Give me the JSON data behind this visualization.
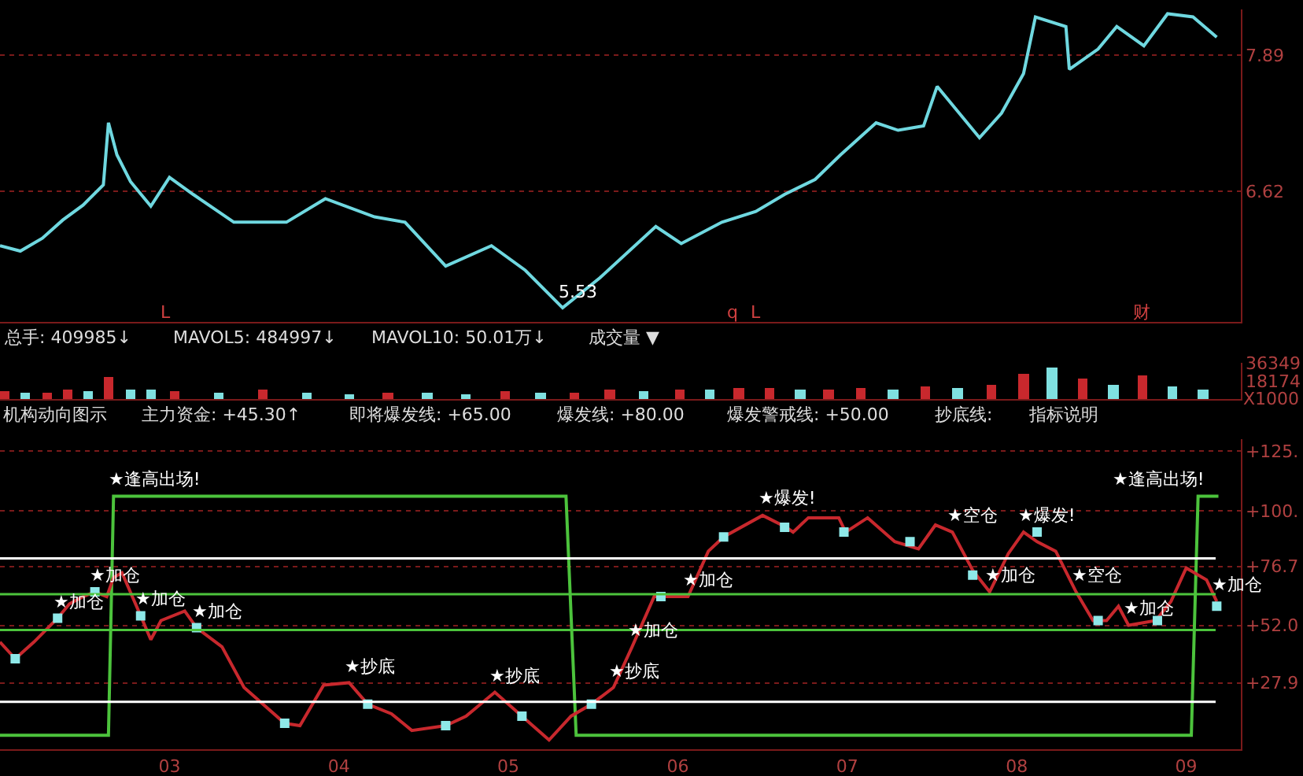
{
  "chart_data": [
    {
      "type": "line",
      "xlim": [
        2.0,
        9.32
      ],
      "ylim": [
        5.4,
        8.32
      ],
      "yticks": [
        6.62,
        7.89
      ],
      "grid": "y",
      "tick_labels": "y",
      "line_style": "solid",
      "series": [
        {
          "color": "#6fd8e0",
          "x": [
            2.0,
            2.12,
            2.25,
            2.37,
            2.49,
            2.61,
            2.64,
            2.69,
            2.77,
            2.89,
            3.0,
            3.14,
            3.38,
            3.69,
            3.92,
            4.21,
            4.39,
            4.63,
            4.9,
            5.1,
            5.32,
            5.54,
            5.87,
            6.02,
            6.26,
            6.46,
            6.63,
            6.81,
            6.96,
            7.17,
            7.3,
            7.45,
            7.53,
            7.78,
            7.91,
            8.04,
            8.11,
            8.29,
            8.31,
            8.48,
            8.59,
            8.75,
            8.89,
            9.04,
            9.18
          ],
          "values": [
            6.11,
            6.06,
            6.18,
            6.35,
            6.49,
            6.68,
            7.26,
            6.96,
            6.71,
            6.48,
            6.75,
            6.59,
            6.33,
            6.33,
            6.55,
            6.38,
            6.33,
            5.92,
            6.11,
            5.88,
            5.53,
            5.81,
            6.29,
            6.13,
            6.33,
            6.43,
            6.59,
            6.73,
            6.96,
            7.26,
            7.19,
            7.23,
            7.6,
            7.12,
            7.35,
            7.72,
            8.25,
            8.16,
            7.76,
            7.95,
            8.16,
            7.98,
            8.28,
            8.25,
            8.06
          ]
        }
      ],
      "annotations": [
        {
          "text": "5.53",
          "x": 5.32,
          "y": 5.53
        },
        "L",
        "q",
        "L",
        "财"
      ]
    },
    {
      "type": "bar",
      "xlim": [
        2.0,
        9.32
      ],
      "ylim": [
        0,
        36349
      ],
      "yticks": [
        36349,
        18174
      ],
      "ylabel": "X1000",
      "tick_labels": "y",
      "x": [
        2.03,
        2.15,
        2.28,
        2.4,
        2.52,
        2.64,
        2.77,
        2.89,
        3.03,
        3.29,
        3.55,
        3.81,
        4.06,
        4.29,
        4.52,
        4.75,
        4.98,
        5.19,
        5.39,
        5.6,
        5.8,
        6.01,
        6.19,
        6.36,
        6.54,
        6.72,
        6.89,
        7.08,
        7.27,
        7.46,
        7.65,
        7.85,
        8.04,
        8.21,
        8.39,
        8.57,
        8.74,
        8.92,
        9.1
      ],
      "values": [
        8000,
        6000,
        7000,
        9000,
        8000,
        22000,
        10000,
        9000,
        8000,
        7000,
        9000,
        6000,
        5000,
        7000,
        6000,
        5000,
        8000,
        6000,
        7000,
        9000,
        8000,
        10000,
        9000,
        11000,
        12000,
        10000,
        9000,
        11000,
        10000,
        13000,
        12000,
        14000,
        26000,
        32000,
        20000,
        14000,
        24000,
        13000,
        10000
      ],
      "colors": [
        "#c8282d",
        "#7fe0e0",
        "#c8282d",
        "#c8282d",
        "#7fe0e0",
        "#c8282d",
        "#7fe0e0",
        "#7fe0e0",
        "#c8282d",
        "#7fe0e0",
        "#c8282d",
        "#7fe0e0",
        "#7fe0e0",
        "#c8282d",
        "#7fe0e0",
        "#7fe0e0",
        "#c8282d",
        "#7fe0e0",
        "#c8282d",
        "#c8282d",
        "#7fe0e0",
        "#c8282d",
        "#7fe0e0",
        "#c8282d",
        "#c8282d",
        "#7fe0e0",
        "#c8282d",
        "#c8282d",
        "#7fe0e0",
        "#c8282d",
        "#7fe0e0",
        "#c8282d",
        "#c8282d",
        "#7fe0e0",
        "#c8282d",
        "#7fe0e0",
        "#c8282d",
        "#7fe0e0",
        "#7fe0e0"
      ],
      "annotations": [
        "总手: 409985↓",
        "MAVOL5: 484997↓",
        "MAVOL10: 50.01万↓",
        "成交量 ▼"
      ]
    },
    {
      "type": "line",
      "xlim": [
        2.0,
        9.32
      ],
      "ylim": [
        0,
        130
      ],
      "yticks": [
        {
          "value": 125,
          "label": "+125."
        },
        {
          "value": 100,
          "label": "+100."
        },
        {
          "value": 76.7,
          "label": "+76.7"
        },
        {
          "value": 52.0,
          "label": "+52.0"
        },
        {
          "value": 27.9,
          "label": "+27.9"
        }
      ],
      "grid": "y",
      "xticks": [
        {
          "value": 3,
          "label": "03"
        },
        {
          "value": 4,
          "label": "04"
        },
        {
          "value": 5,
          "label": "05"
        },
        {
          "value": 6,
          "label": "06"
        },
        {
          "value": 7,
          "label": "07"
        },
        {
          "value": 8,
          "label": "08"
        },
        {
          "value": 9,
          "label": "09"
        }
      ],
      "ref_lines": [
        {
          "axis": "y",
          "value": 80,
          "color": "#ffffff"
        },
        {
          "axis": "y",
          "value": 65,
          "color": "#4cc33c"
        },
        {
          "axis": "y",
          "value": 50,
          "color": "#4cc33c"
        },
        {
          "axis": "y",
          "value": 20,
          "color": "#ffffff"
        }
      ],
      "series": [
        {
          "color": "#4cc33c",
          "x": [
            2.0,
            2.64,
            2.67,
            5.34,
            5.4,
            9.03,
            9.07,
            9.19
          ],
          "values": [
            6,
            6,
            106,
            106,
            6,
            6,
            106,
            106
          ]
        },
        {
          "color": "#c8282d",
          "x": [
            2.0,
            2.09,
            2.2,
            2.34,
            2.41,
            2.49,
            2.56,
            2.63,
            2.67,
            2.72,
            2.83,
            2.89,
            2.95,
            3.09,
            3.16,
            3.31,
            3.44,
            3.68,
            3.77,
            3.91,
            4.06,
            4.17,
            4.31,
            4.43,
            4.63,
            4.75,
            4.92,
            5.08,
            5.24,
            5.37,
            5.49,
            5.62,
            5.73,
            5.86,
            6.06,
            6.18,
            6.27,
            6.5,
            6.64,
            6.68,
            6.77,
            6.95,
            6.99,
            7.12,
            7.28,
            7.42,
            7.52,
            7.62,
            7.74,
            7.84,
            7.95,
            8.04,
            8.12,
            8.23,
            8.35,
            8.45,
            8.53,
            8.6,
            8.66,
            8.82,
            8.91,
            9.0,
            9.12,
            9.18
          ],
          "values": [
            45,
            38,
            45,
            55,
            61,
            64,
            66,
            64,
            72,
            74,
            56,
            46,
            54,
            58,
            51,
            43,
            26,
            11,
            10,
            27,
            28,
            19,
            15,
            8,
            10,
            14,
            24,
            14,
            4,
            14,
            19,
            26,
            43,
            64,
            64,
            83,
            89,
            98,
            93,
            91,
            97,
            97,
            91,
            97,
            87,
            84,
            94,
            91,
            75,
            66,
            82,
            91,
            87,
            83,
            66,
            54,
            54,
            60,
            52,
            54,
            62,
            76,
            71,
            62
          ]
        },
        {
          "type": "scatter",
          "marker": "square",
          "color": "#8ee8e8",
          "x": [
            2.09,
            2.34,
            2.56,
            2.83,
            3.16,
            3.68,
            4.17,
            4.63,
            5.08,
            5.49,
            5.9,
            6.27,
            6.63,
            6.98,
            7.37,
            7.74,
            8.12,
            8.48,
            8.83,
            9.18
          ],
          "values": [
            38,
            55,
            66,
            56,
            51,
            11,
            19,
            10,
            14,
            19,
            64,
            89,
            93,
            91,
            87,
            73,
            91,
            54,
            54,
            60
          ]
        }
      ],
      "annotations": [
        "机构动向图示",
        "主力资金: +45.30↑",
        "即将爆发线: +65.00",
        "爆发线: +80.00",
        "爆发警戒线: +50.00",
        "抄底线:",
        "指标说明",
        {
          "text": "★逢高出场!",
          "x": 2.67,
          "y": 106
        },
        {
          "text": "★加仓",
          "x": 2.34,
          "y": 55
        },
        {
          "text": "★加仓",
          "x": 2.56,
          "y": 66
        },
        {
          "text": "★加仓",
          "x": 2.83,
          "y": 56
        },
        {
          "text": "★加仓",
          "x": 3.16,
          "y": 51
        },
        {
          "text": "★抄底",
          "x": 4.06,
          "y": 28
        },
        {
          "text": "★抄底",
          "x": 4.92,
          "y": 24
        },
        {
          "text": "★抄底",
          "x": 5.62,
          "y": 26
        },
        {
          "text": "★加仓",
          "x": 5.73,
          "y": 43
        },
        {
          "text": "★加仓",
          "x": 6.06,
          "y": 64
        },
        {
          "text": "★爆发!",
          "x": 6.5,
          "y": 98
        },
        {
          "text": "★空仓",
          "x": 7.62,
          "y": 91
        },
        {
          "text": "★爆发!",
          "x": 8.04,
          "y": 91
        },
        {
          "text": "★加仓",
          "x": 7.84,
          "y": 66
        },
        {
          "text": "★空仓",
          "x": 8.35,
          "y": 66
        },
        {
          "text": "★加仓",
          "x": 8.66,
          "y": 52
        },
        {
          "text": "★加仓",
          "x": 9.18,
          "y": 62
        },
        {
          "text": "★逢高出场!",
          "x": 9.07,
          "y": 106
        }
      ]
    }
  ]
}
